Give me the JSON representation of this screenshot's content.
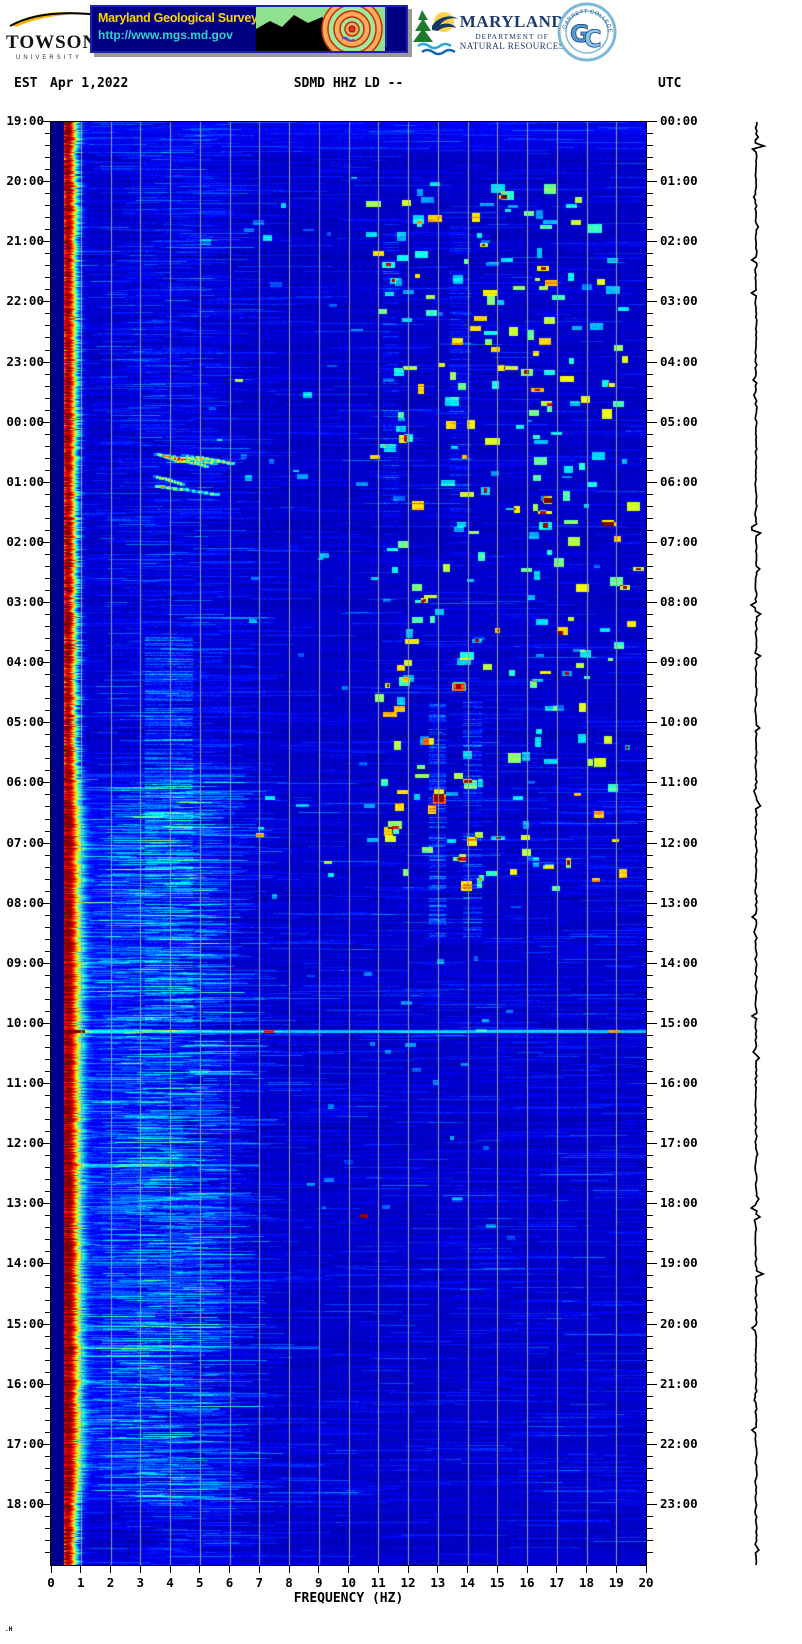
{
  "header": {
    "towson": {
      "name": "TOWSON",
      "subtitle": "UNIVERSITY"
    },
    "mgs": {
      "title": "Maryland Geological Survey",
      "url": "http://www.mgs.md.gov"
    },
    "dnr": {
      "line1": "MARYLAND",
      "line2": "DEPARTMENT OF",
      "line3": "NATURAL RESOURCES"
    },
    "garrett": {
      "ring_text": "GARRETT COLLEGE",
      "initial_g": "G",
      "initial_c": "C"
    }
  },
  "title_bar": {
    "left_timezone": "EST",
    "date": "Apr 1,2022",
    "station": "SDMD HHZ LD --",
    "right_timezone": "UTC"
  },
  "footer": {
    "mark": ".H"
  },
  "chart_data": {
    "type": "heatmap",
    "subtype": "seismic-spectrogram-webicorder",
    "station": "SDMD HHZ LD --",
    "date": "Apr 1,2022",
    "xlabel": "FREQUENCY (HZ)",
    "xlim": [
      0,
      20
    ],
    "x_ticks": [
      "0",
      "1",
      "2",
      "3",
      "4",
      "5",
      "6",
      "7",
      "8",
      "9",
      "10",
      "11",
      "12",
      "13",
      "14",
      "15",
      "16",
      "17",
      "18",
      "19",
      "20"
    ],
    "left_axis": {
      "timezone": "EST",
      "labels": [
        "19:00",
        "20:00",
        "21:00",
        "22:00",
        "23:00",
        "00:00",
        "01:00",
        "02:00",
        "03:00",
        "04:00",
        "05:00",
        "06:00",
        "07:00",
        "08:00",
        "09:00",
        "10:00",
        "11:00",
        "12:00",
        "13:00",
        "14:00",
        "15:00",
        "16:00",
        "17:00",
        "18:00"
      ]
    },
    "right_axis": {
      "timezone": "UTC",
      "labels": [
        "00:00",
        "01:00",
        "02:00",
        "03:00",
        "04:00",
        "05:00",
        "06:00",
        "07:00",
        "08:00",
        "09:00",
        "10:00",
        "11:00",
        "12:00",
        "13:00",
        "14:00",
        "15:00",
        "16:00",
        "17:00",
        "18:00",
        "19:00",
        "20:00",
        "21:00",
        "22:00",
        "23:00"
      ]
    },
    "minor_tick_interval_min": 12,
    "colormap": "jet",
    "notable_features": [
      "persistent microseism/noise band ~0.5-1.3 Hz (dark red to cyan)",
      "quiet dark-navy strip below ~0.45 Hz",
      "scattered high-frequency transients 11-19 Hz from ~20:00 to ~07:30 EST",
      "broadband horizontal streak near 10:05 EST / 15:05 UTC",
      "vertical noise bands near 3-4.7 Hz and 13-14.5 Hz during morning hours",
      "diagonal streaks near 3.5-6 Hz around 00:40 EST",
      "daytime cultural noise 1.5-4.5 Hz after ~07:00 EST"
    ],
    "render": {
      "seed": 1337,
      "bg_value": 0.07,
      "left_strip_max_hz": 0.44,
      "left_strip_value": 0.012,
      "noise_value": 0.05,
      "band": {
        "center_hz": 0.55,
        "sigma_night": 0.22,
        "sigma_jitter": 0.16,
        "sigma_day_extra": 0.13,
        "peak": 0.92,
        "peak_jitter": 0.22
      },
      "day_window_t": [
        0.44,
        0.97
      ],
      "day_bump": {
        "center_hz": 2.0,
        "sigma_hz": 1.4,
        "amp": 0.055
      },
      "top_bright_t": 0.025,
      "streaks": {
        "amp": 0.065,
        "low_freq_bias_hz": [
          0.9,
          5.2
        ]
      },
      "stripes": [
        {
          "f": [
            3.15,
            4.75
          ],
          "t": [
            0.355,
            0.625
          ],
          "amp": 0.12,
          "gate": 0.5
        },
        {
          "f": [
            12.7,
            13.25
          ],
          "t": [
            0.4,
            0.565
          ],
          "amp": 0.13,
          "gate": 0.5
        },
        {
          "f": [
            13.85,
            14.45
          ],
          "t": [
            0.4,
            0.565
          ],
          "amp": 0.11,
          "gate": 0.45
        },
        {
          "f": [
            11.15,
            11.65
          ],
          "t": [
            0.07,
            0.3
          ],
          "amp": 0.08,
          "gate": 0.35
        },
        {
          "f": [
            13.4,
            14.1
          ],
          "t": [
            0.07,
            0.3
          ],
          "amp": 0.08,
          "gate": 0.35
        },
        {
          "f": [
            2.9,
            4.4
          ],
          "t": [
            0.63,
            0.96
          ],
          "amp": 0.07,
          "gate": 0.4
        }
      ],
      "night_blobs": {
        "count": 250,
        "t": [
          0.04,
          0.53
        ],
        "centers_hz": [
          11.7,
          12.2,
          13.6,
          14.3,
          15.9,
          16.6,
          17.1,
          18.2,
          18.9
        ],
        "spread_hz": 0.9,
        "w_hz": [
          0.12,
          0.45
        ],
        "h_rows": [
          2,
          9
        ],
        "amp": [
          0.2,
          0.62
        ],
        "core_chance": 0.08,
        "core_amp": 0.88
      },
      "sparse_blobs": {
        "count": 70,
        "f": [
          5.0,
          19.8
        ],
        "t": [
          0.03,
          0.56
        ],
        "amp": [
          0.12,
          0.3
        ]
      },
      "day_dots": {
        "count": 26,
        "f": [
          8.5,
          15.5
        ],
        "t": [
          0.56,
          0.78
        ],
        "amp": [
          0.1,
          0.22
        ]
      },
      "diag_streaks": {
        "count": 6,
        "t0": [
          0.228,
          0.252
        ],
        "f0": [
          3.3,
          4.6
        ],
        "len_hz": [
          0.7,
          2.2
        ],
        "dt": 0.006,
        "amp": 0.26
      },
      "h_lines": [
        {
          "t": 0.6295,
          "f": [
            0.45,
            20
          ],
          "amp": 0.24,
          "hot": [
            [
              7.3,
              0.5
            ],
            [
              0.95,
              0.55
            ],
            [
              18.9,
              0.4
            ]
          ]
        },
        {
          "t": 0.452,
          "f": [
            1.0,
            6.5
          ],
          "amp": 0.1,
          "hot": []
        },
        {
          "t": 0.722,
          "f": [
            0.8,
            7.0
          ],
          "amp": 0.11,
          "hot": []
        },
        {
          "t": 0.848,
          "f": [
            0.5,
            9.0
          ],
          "amp": 0.12,
          "hot": []
        }
      ],
      "points": [
        {
          "f": 7.0,
          "t": 0.493,
          "amp": 0.55
        },
        {
          "f": 10.5,
          "t": 0.757,
          "amp": 0.9
        },
        {
          "f": 18.3,
          "t": 0.524,
          "amp": 0.6
        },
        {
          "f": 6.3,
          "t": 0.178,
          "amp": 0.45
        },
        {
          "f": 9.3,
          "t": 0.512,
          "amp": 0.4
        }
      ],
      "grid_color": "#9E9E9E",
      "trace": {
        "half_jitter": 0.9,
        "spikes": 34,
        "spike_amp": [
          1.5,
          5
        ],
        "big_spikes": [
          {
            "t": 0.018,
            "amp": 8
          },
          {
            "t": 0.8,
            "amp": 7
          },
          {
            "t": 0.285,
            "amp": 4.5
          },
          {
            "t": 0.62,
            "amp": 4
          }
        ]
      }
    }
  }
}
